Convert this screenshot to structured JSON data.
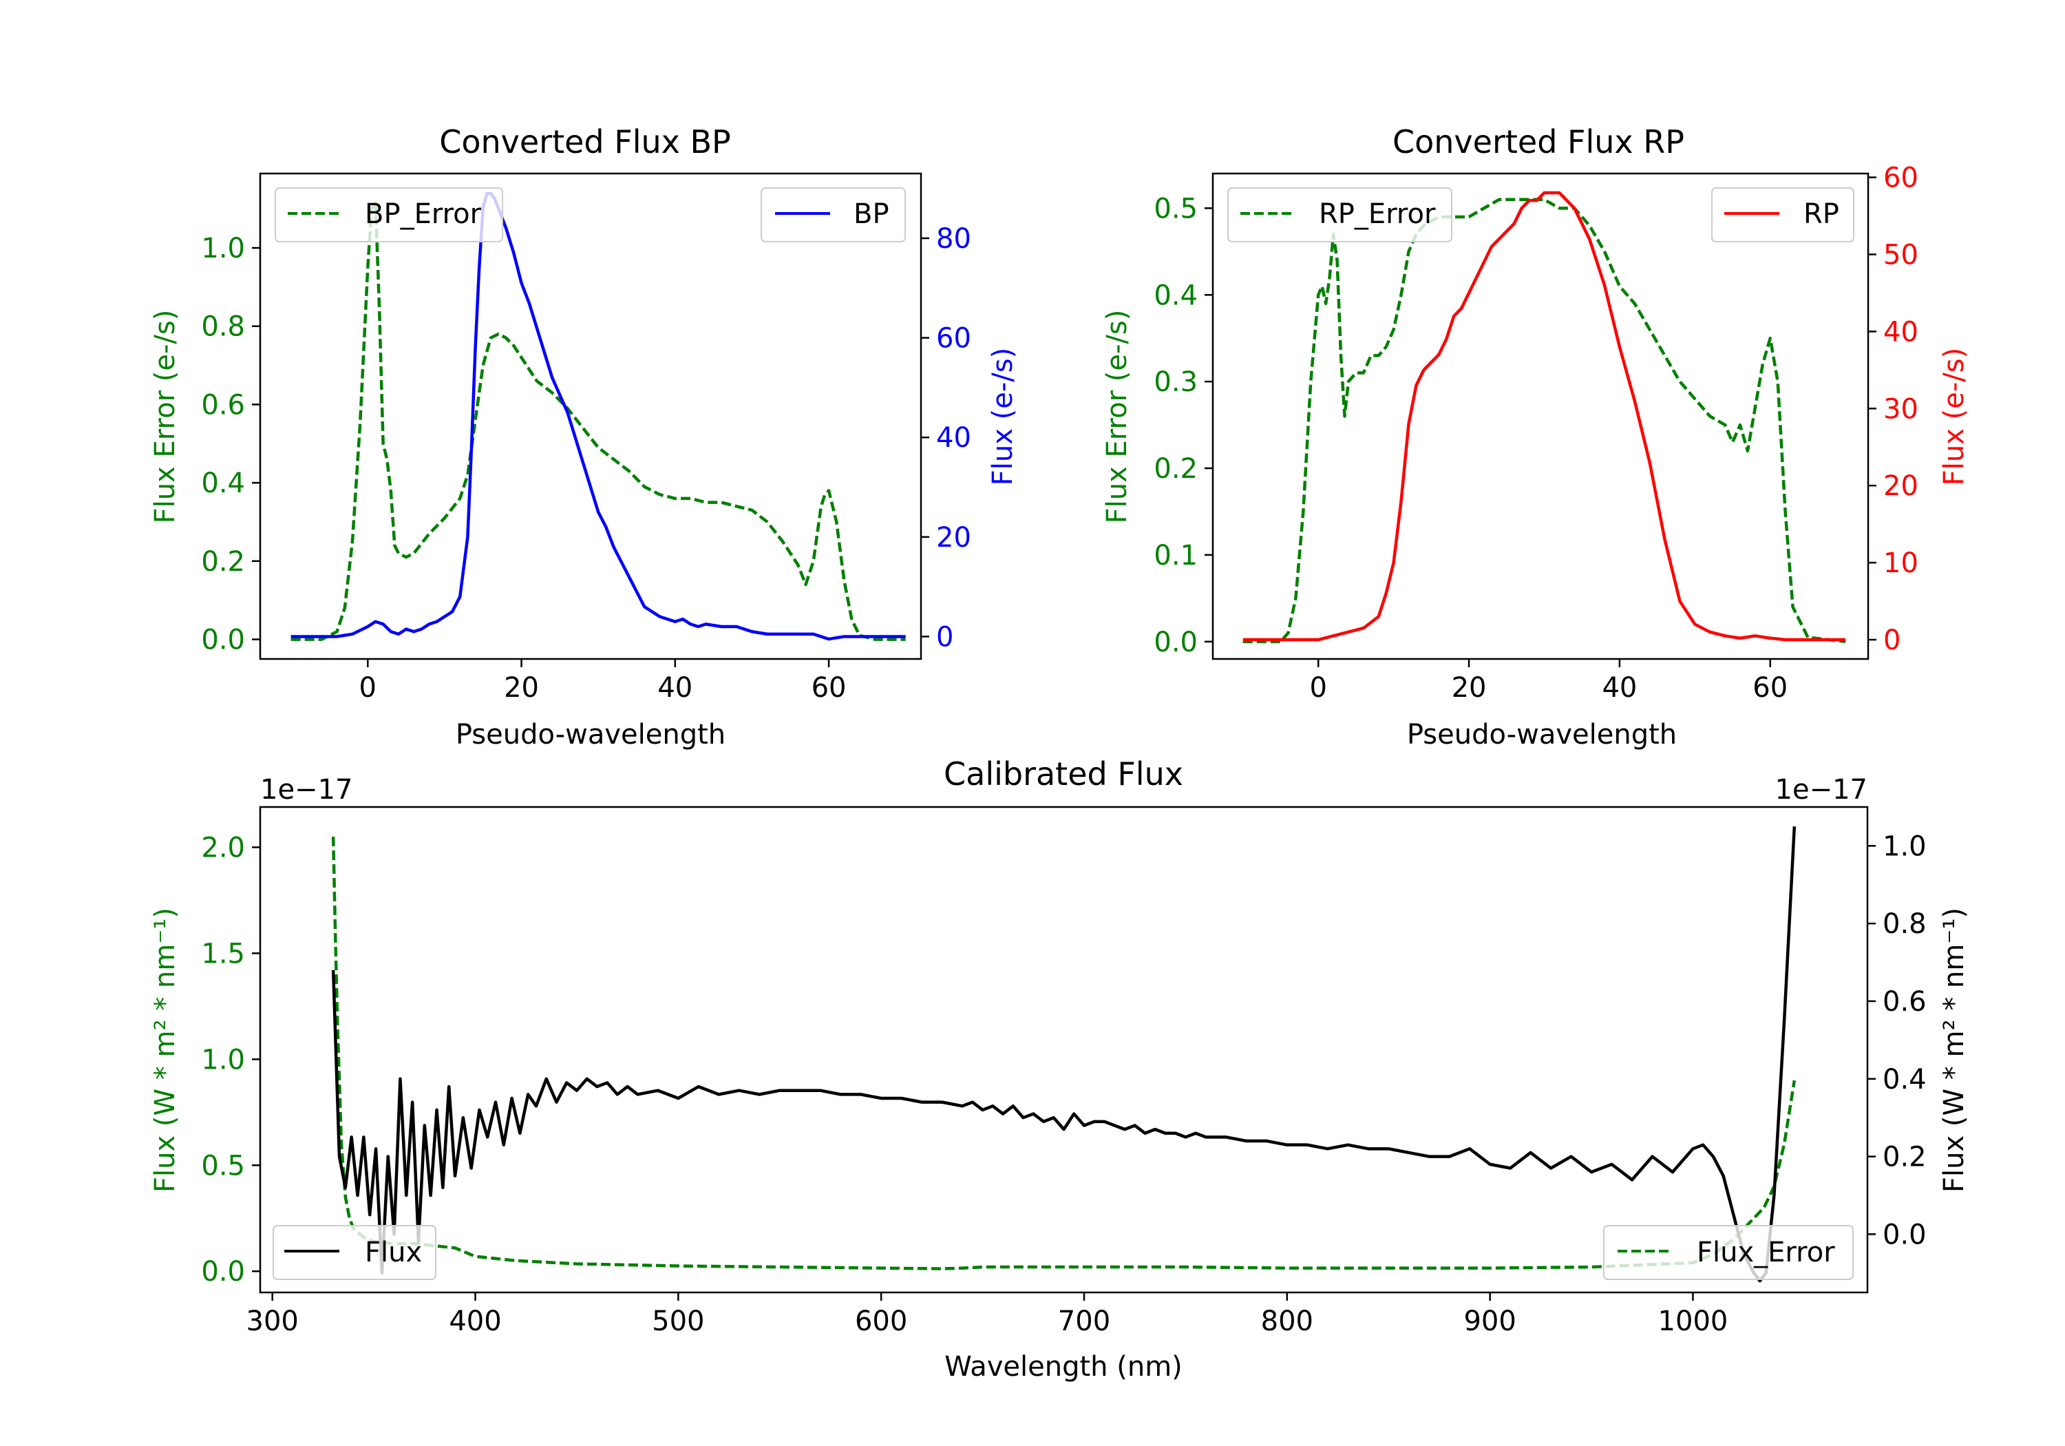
{
  "colors": {
    "bp": "#0000ff",
    "rp": "#ff0000",
    "error": "#008000",
    "flux": "#000000",
    "axis": "#000000"
  },
  "chart_data": [
    {
      "id": "bp",
      "type": "line",
      "title": "Converted Flux BP",
      "xlabel": "Pseudo-wavelength",
      "xlim": [
        -14,
        72
      ],
      "xticks": [
        0,
        20,
        40,
        60
      ],
      "left": {
        "label": "Flux Error (e-/s)",
        "ylim": [
          -0.05,
          1.19
        ],
        "ticks": [
          0.0,
          0.2,
          0.4,
          0.6,
          0.8,
          1.0
        ],
        "tick_labels": [
          "0.0",
          "0.2",
          "0.4",
          "0.6",
          "0.8",
          "1.0"
        ]
      },
      "right": {
        "label": "Flux (e-/s)",
        "ylim": [
          -4.5,
          93
        ],
        "ticks": [
          0,
          20,
          40,
          60,
          80
        ],
        "tick_labels": [
          "0",
          "20",
          "40",
          "60",
          "80"
        ]
      },
      "series": [
        {
          "name": "BP_Error",
          "axis": "left",
          "style": "dashed",
          "color_key": "error",
          "x": [
            -10,
            -6,
            -4,
            -3,
            -2,
            -1,
            0,
            0.5,
            1,
            1.5,
            2,
            2.5,
            3,
            3.5,
            4,
            5,
            6,
            8,
            10,
            12,
            13,
            14,
            15,
            16,
            17,
            18,
            19,
            20,
            22,
            24,
            26,
            28,
            30,
            32,
            34,
            36,
            38,
            40,
            42,
            44,
            46,
            48,
            50,
            52,
            54,
            56,
            57,
            58,
            59,
            59.5,
            60,
            61,
            62,
            63,
            64,
            66,
            70
          ],
          "y": [
            0.0,
            0.0,
            0.02,
            0.08,
            0.25,
            0.55,
            0.95,
            1.1,
            1.12,
            0.85,
            0.5,
            0.46,
            0.38,
            0.24,
            0.22,
            0.21,
            0.22,
            0.27,
            0.31,
            0.36,
            0.42,
            0.56,
            0.7,
            0.77,
            0.78,
            0.77,
            0.75,
            0.72,
            0.66,
            0.63,
            0.59,
            0.54,
            0.49,
            0.46,
            0.43,
            0.39,
            0.37,
            0.36,
            0.36,
            0.35,
            0.35,
            0.34,
            0.33,
            0.3,
            0.25,
            0.19,
            0.14,
            0.2,
            0.34,
            0.37,
            0.38,
            0.3,
            0.15,
            0.05,
            0.01,
            0.0,
            0.0
          ]
        },
        {
          "name": "BP",
          "axis": "right",
          "style": "solid",
          "color_key": "bp",
          "x": [
            -10,
            -4,
            -2,
            0,
            1,
            2,
            3,
            4,
            5,
            6,
            7,
            8,
            9,
            10,
            11,
            12,
            13,
            13.5,
            14,
            14.5,
            15,
            15.5,
            16,
            16.5,
            17,
            18,
            19,
            20,
            21,
            22,
            23,
            24,
            26,
            28,
            30,
            31,
            32,
            33,
            34,
            35,
            36,
            37,
            38,
            39,
            40,
            41,
            42,
            43,
            44,
            46,
            48,
            50,
            52,
            55,
            58,
            60,
            62,
            64,
            70
          ],
          "y": [
            0,
            0,
            0.5,
            2,
            3,
            2.5,
            1,
            0.5,
            1.5,
            1,
            1.5,
            2.5,
            3,
            4,
            5,
            8,
            20,
            38,
            58,
            74,
            86,
            89,
            89,
            88,
            86,
            82,
            77,
            71,
            67,
            62,
            57,
            52,
            45,
            35,
            25,
            22,
            18,
            15,
            12,
            9,
            6,
            5,
            4,
            3.5,
            3,
            3.5,
            2.5,
            2,
            2.5,
            2,
            2,
            1,
            0.5,
            0.5,
            0.5,
            -0.5,
            0,
            0,
            0
          ]
        }
      ],
      "legend": [
        {
          "label": "BP_Error",
          "position": "upper-left",
          "series": "BP_Error"
        },
        {
          "label": "BP",
          "position": "upper-right",
          "series": "BP"
        }
      ]
    },
    {
      "id": "rp",
      "type": "line",
      "title": "Converted Flux RP",
      "xlabel": "Pseudo-wavelength",
      "xlim": [
        -14,
        73
      ],
      "xticks": [
        0,
        20,
        40,
        60
      ],
      "left": {
        "label": "Flux Error (e-/s)",
        "ylim": [
          -0.02,
          0.54
        ],
        "ticks": [
          0.0,
          0.1,
          0.2,
          0.3,
          0.4,
          0.5
        ],
        "tick_labels": [
          "0.0",
          "0.1",
          "0.2",
          "0.3",
          "0.4",
          "0.5"
        ]
      },
      "right": {
        "label": "Flux (e-/s)",
        "ylim": [
          -2.5,
          60.5
        ],
        "ticks": [
          0,
          10,
          20,
          30,
          40,
          50,
          60
        ],
        "tick_labels": [
          "0",
          "10",
          "20",
          "30",
          "40",
          "50",
          "60"
        ]
      },
      "series": [
        {
          "name": "RP_Error",
          "axis": "left",
          "style": "dashed",
          "color_key": "error",
          "x": [
            -10,
            -5,
            -4,
            -3,
            -2,
            -1,
            0,
            0.5,
            1,
            1.5,
            2,
            2.5,
            3,
            3.5,
            4,
            5,
            6,
            7,
            8,
            9,
            10,
            11,
            12,
            13,
            14,
            16,
            18,
            20,
            22,
            24,
            26,
            28,
            30,
            32,
            34,
            36,
            38,
            40,
            42,
            44,
            46,
            48,
            50,
            52,
            54,
            55,
            56,
            57,
            58,
            59,
            60,
            61,
            62,
            63,
            65,
            70
          ],
          "y": [
            0.0,
            0.0,
            0.01,
            0.05,
            0.15,
            0.3,
            0.4,
            0.41,
            0.39,
            0.42,
            0.47,
            0.44,
            0.33,
            0.26,
            0.3,
            0.31,
            0.31,
            0.33,
            0.33,
            0.34,
            0.36,
            0.4,
            0.45,
            0.47,
            0.48,
            0.49,
            0.49,
            0.49,
            0.5,
            0.51,
            0.51,
            0.51,
            0.51,
            0.5,
            0.5,
            0.48,
            0.45,
            0.41,
            0.39,
            0.36,
            0.33,
            0.3,
            0.28,
            0.26,
            0.25,
            0.23,
            0.25,
            0.22,
            0.27,
            0.32,
            0.35,
            0.3,
            0.15,
            0.04,
            0.005,
            0.0
          ]
        },
        {
          "name": "RP",
          "axis": "right",
          "style": "solid",
          "color_key": "rp",
          "x": [
            -10,
            0,
            2,
            4,
            6,
            8,
            9,
            10,
            11,
            12,
            13,
            14,
            15,
            16,
            17,
            18,
            19,
            20,
            21,
            22,
            23,
            24,
            25,
            26,
            27,
            28,
            29,
            30,
            31,
            32,
            33,
            34,
            35,
            36,
            37,
            38,
            39,
            40,
            42,
            44,
            46,
            48,
            50,
            52,
            54,
            56,
            58,
            60,
            62,
            65,
            70
          ],
          "y": [
            0,
            0,
            0.5,
            1,
            1.5,
            3,
            6,
            10,
            18,
            28,
            33,
            35,
            36,
            37,
            39,
            42,
            43,
            45,
            47,
            49,
            51,
            52,
            53,
            54,
            56,
            57,
            57,
            58,
            58,
            58,
            57,
            56,
            54,
            52,
            49,
            46,
            42,
            38,
            31,
            23,
            13,
            5,
            2,
            1,
            0.5,
            0.2,
            0.5,
            0.2,
            0,
            0,
            0
          ]
        }
      ],
      "legend": [
        {
          "label": "RP_Error",
          "position": "upper-left",
          "series": "RP_Error"
        },
        {
          "label": "RP",
          "position": "upper-right",
          "series": "RP"
        }
      ]
    },
    {
      "id": "cal",
      "type": "line",
      "title": "Calibrated Flux",
      "xlabel": "Wavelength (nm)",
      "xlim": [
        294,
        1086
      ],
      "xticks": [
        300,
        400,
        500,
        600,
        700,
        800,
        900,
        1000
      ],
      "left": {
        "label": "Flux (W * m² * nm⁻¹)",
        "offset_text": "1e−17",
        "ylim": [
          -0.1,
          2.19
        ],
        "ticks": [
          0.0,
          0.5,
          1.0,
          1.5,
          2.0
        ],
        "tick_labels": [
          "0.0",
          "0.5",
          "1.0",
          "1.5",
          "2.0"
        ]
      },
      "right": {
        "label": "Flux (W * m² * nm⁻¹)",
        "offset_text": "1e−17",
        "ylim": [
          -0.15,
          1.1
        ],
        "ticks": [
          0.0,
          0.2,
          0.4,
          0.6,
          0.8,
          1.0
        ],
        "tick_labels": [
          "0.0",
          "0.2",
          "0.4",
          "0.6",
          "0.8",
          "1.0"
        ]
      },
      "series": [
        {
          "name": "Flux_Error",
          "axis": "left",
          "style": "dashed",
          "color_key": "error",
          "x": [
            330,
            331,
            332,
            333,
            334,
            336,
            338,
            340,
            345,
            350,
            360,
            370,
            380,
            390,
            400,
            420,
            450,
            500,
            550,
            600,
            630,
            640,
            650,
            700,
            750,
            800,
            850,
            900,
            950,
            1000,
            1010,
            1020,
            1030,
            1035,
            1040,
            1045,
            1050
          ],
          "y": [
            2.05,
            1.6,
            1.2,
            0.9,
            0.6,
            0.35,
            0.25,
            0.2,
            0.16,
            0.14,
            0.13,
            0.13,
            0.12,
            0.11,
            0.07,
            0.05,
            0.035,
            0.025,
            0.02,
            0.015,
            0.012,
            0.015,
            0.02,
            0.02,
            0.02,
            0.015,
            0.015,
            0.015,
            0.02,
            0.04,
            0.08,
            0.15,
            0.25,
            0.3,
            0.4,
            0.6,
            0.9
          ]
        },
        {
          "name": "Flux",
          "axis": "right",
          "style": "solid",
          "color_key": "flux",
          "x": [
            330,
            333,
            336,
            339,
            342,
            345,
            348,
            351,
            354,
            357,
            360,
            363,
            366,
            369,
            372,
            375,
            378,
            381,
            384,
            387,
            390,
            394,
            398,
            402,
            406,
            410,
            414,
            418,
            422,
            426,
            430,
            435,
            440,
            445,
            450,
            455,
            460,
            465,
            470,
            475,
            480,
            490,
            500,
            510,
            520,
            530,
            540,
            550,
            560,
            570,
            580,
            590,
            600,
            610,
            620,
            630,
            640,
            645,
            650,
            655,
            660,
            665,
            670,
            675,
            680,
            685,
            690,
            695,
            700,
            705,
            710,
            715,
            720,
            725,
            730,
            735,
            740,
            745,
            750,
            755,
            760,
            770,
            780,
            790,
            800,
            810,
            820,
            830,
            840,
            850,
            860,
            870,
            880,
            890,
            900,
            910,
            920,
            930,
            940,
            950,
            960,
            970,
            980,
            990,
            1000,
            1005,
            1010,
            1015,
            1020,
            1025,
            1030,
            1033,
            1036,
            1040,
            1045,
            1050
          ],
          "y": [
            0.68,
            0.2,
            0.12,
            0.25,
            0.1,
            0.25,
            0.05,
            0.22,
            -0.1,
            0.2,
            0.0,
            0.4,
            0.1,
            0.34,
            -0.02,
            0.28,
            0.1,
            0.32,
            0.12,
            0.38,
            0.15,
            0.3,
            0.17,
            0.32,
            0.25,
            0.34,
            0.23,
            0.35,
            0.26,
            0.36,
            0.33,
            0.4,
            0.34,
            0.39,
            0.37,
            0.4,
            0.38,
            0.39,
            0.36,
            0.38,
            0.36,
            0.37,
            0.35,
            0.38,
            0.36,
            0.37,
            0.36,
            0.37,
            0.37,
            0.37,
            0.36,
            0.36,
            0.35,
            0.35,
            0.34,
            0.34,
            0.33,
            0.34,
            0.32,
            0.33,
            0.31,
            0.33,
            0.3,
            0.31,
            0.29,
            0.3,
            0.27,
            0.31,
            0.28,
            0.29,
            0.29,
            0.28,
            0.27,
            0.28,
            0.26,
            0.27,
            0.26,
            0.26,
            0.25,
            0.26,
            0.25,
            0.25,
            0.24,
            0.24,
            0.23,
            0.23,
            0.22,
            0.23,
            0.22,
            0.22,
            0.21,
            0.2,
            0.2,
            0.22,
            0.18,
            0.17,
            0.21,
            0.17,
            0.2,
            0.16,
            0.18,
            0.14,
            0.2,
            0.16,
            0.22,
            0.23,
            0.2,
            0.15,
            0.05,
            -0.05,
            -0.1,
            -0.12,
            -0.1,
            0.1,
            0.55,
            1.05
          ]
        }
      ],
      "legend": [
        {
          "label": "Flux",
          "position": "lower-left",
          "series": "Flux"
        },
        {
          "label": "Flux_Error",
          "position": "lower-right",
          "series": "Flux_Error"
        }
      ]
    }
  ]
}
